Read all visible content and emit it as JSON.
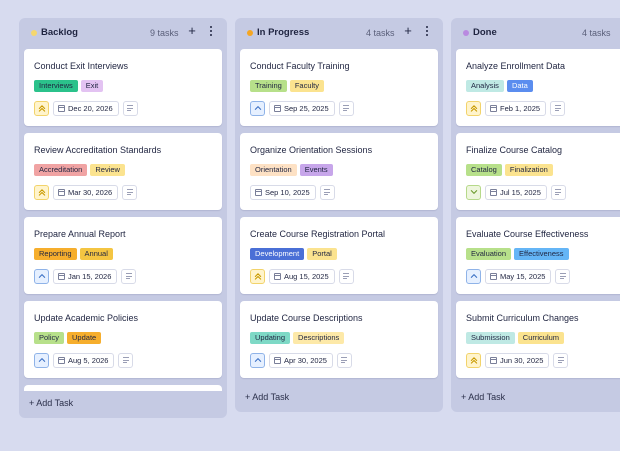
{
  "colors": {
    "background": "#d7dbef",
    "column": "#c5cae3",
    "backlog_dot": "#f5d76e",
    "progress_dot": "#f5a623",
    "done_dot": "#b98ae0"
  },
  "columns": [
    {
      "title": "Backlog",
      "count": "9 tasks",
      "add_label": "+ Add Task",
      "cards": [
        {
          "title": "Conduct Exit Interviews",
          "tags": [
            {
              "label": "Interviews",
              "color": "#2bc28b"
            },
            {
              "label": "Exit",
              "color": "#e3c3f2"
            }
          ],
          "priority": "high",
          "date": "Dec 20, 2026"
        },
        {
          "title": "Review Accreditation Standards",
          "tags": [
            {
              "label": "Accreditation",
              "color": "#f0a3a3"
            },
            {
              "label": "Review",
              "color": "#fbe38f"
            }
          ],
          "priority": "high",
          "date": "Mar 30, 2026"
        },
        {
          "title": "Prepare Annual Report",
          "tags": [
            {
              "label": "Reporting",
              "color": "#f6ae2d"
            },
            {
              "label": "Annual",
              "color": "#f4c542"
            }
          ],
          "priority": "medium",
          "date": "Jan 15, 2026"
        },
        {
          "title": "Update Academic Policies",
          "tags": [
            {
              "label": "Policy",
              "color": "#b7e08a"
            },
            {
              "label": "Update",
              "color": "#f6ae2d"
            }
          ],
          "priority": "medium",
          "date": "Aug 5, 2026"
        }
      ]
    },
    {
      "title": "In Progress",
      "count": "4 tasks",
      "add_label": "+ Add Task",
      "cards": [
        {
          "title": "Conduct Faculty Training",
          "tags": [
            {
              "label": "Training",
              "color": "#b7e08a"
            },
            {
              "label": "Faculty",
              "color": "#fbe38f"
            }
          ],
          "priority": "medium",
          "date": "Sep 25, 2025"
        },
        {
          "title": "Organize Orientation Sessions",
          "tags": [
            {
              "label": "Orientation",
              "color": "#fde1c4"
            },
            {
              "label": "Events",
              "color": "#c7a6ea"
            }
          ],
          "priority": "none",
          "date": "Sep 10, 2025"
        },
        {
          "title": "Create Course Registration Portal",
          "tags": [
            {
              "label": "Development",
              "color": "#4a6fd6"
            },
            {
              "label": "Portal",
              "color": "#fbe38f"
            }
          ],
          "priority": "high",
          "date": "Aug 15, 2025"
        },
        {
          "title": "Update Course Descriptions",
          "tags": [
            {
              "label": "Updating",
              "color": "#7ed9c6"
            },
            {
              "label": "Descriptions",
              "color": "#fde9a8"
            }
          ],
          "priority": "medium",
          "date": "Apr 30, 2025"
        }
      ]
    },
    {
      "title": "Done",
      "count": "4 tasks",
      "add_label": "+ Add Task",
      "cards": [
        {
          "title": "Analyze Enrollment Data",
          "tags": [
            {
              "label": "Analysis",
              "color": "#bfe9e4"
            },
            {
              "label": "Data",
              "color": "#5b8def"
            }
          ],
          "priority": "high",
          "date": "Feb 1, 2025"
        },
        {
          "title": "Finalize Course Catalog",
          "tags": [
            {
              "label": "Catalog",
              "color": "#b7e08a"
            },
            {
              "label": "Finalization",
              "color": "#fbe38f"
            }
          ],
          "priority": "low",
          "date": "Jul 15, 2025"
        },
        {
          "title": "Evaluate Course Effectiveness",
          "tags": [
            {
              "label": "Evaluation",
              "color": "#b7e08a"
            },
            {
              "label": "Effectiveness",
              "color": "#64b5f6"
            }
          ],
          "priority": "medium",
          "date": "May 15, 2025"
        },
        {
          "title": "Submit Curriculum Changes",
          "tags": [
            {
              "label": "Submission",
              "color": "#bfe9e4"
            },
            {
              "label": "Curriculum",
              "color": "#fbe38f"
            }
          ],
          "priority": "high",
          "date": "Jun 30, 2025"
        }
      ]
    }
  ]
}
